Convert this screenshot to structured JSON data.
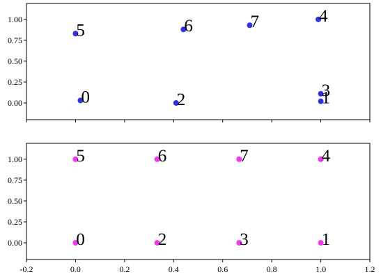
{
  "chart_data": [
    {
      "type": "scatter",
      "color": "#1a1af0",
      "x": [
        0.02,
        1.0,
        0.41,
        1.0,
        0.99,
        0.0,
        0.44,
        0.71
      ],
      "values": [
        0.03,
        0.02,
        0.0,
        0.11,
        1.0,
        0.83,
        0.88,
        0.93
      ],
      "point_labels": [
        "0",
        "1",
        "2",
        "3",
        "4",
        "5",
        "6",
        "7"
      ],
      "xlim": [
        -0.2,
        1.2
      ],
      "ylim": [
        -0.2,
        1.19
      ],
      "xticks": [
        -0.2,
        {
          "value": 0,
          "label": "0.0"
        },
        0.2,
        0.4,
        0.6,
        0.8,
        {
          "value": 1,
          "label": "1.0"
        },
        1.2
      ],
      "yticks": [
        {
          "value": 0,
          "label": "0.00"
        },
        {
          "value": 0.25,
          "label": "0.25"
        },
        {
          "value": 0.5,
          "label": "0.50"
        },
        {
          "value": 0.75,
          "label": "0.75"
        },
        {
          "value": 1,
          "label": "1.00"
        }
      ]
    },
    {
      "type": "scatter",
      "color": "#ff1aff",
      "x": [
        0.0,
        1.0,
        0.333,
        0.667,
        1.0,
        0.0,
        0.333,
        0.667
      ],
      "values": [
        0,
        0,
        0,
        0,
        1,
        1,
        1,
        1
      ],
      "point_labels": [
        "0",
        "1",
        "2",
        "3",
        "4",
        "5",
        "6",
        "7"
      ],
      "xlim": [
        -0.2,
        1.2
      ],
      "ylim": [
        -0.2,
        1.19
      ],
      "xticks": [
        -0.2,
        {
          "value": 0,
          "label": "0.0"
        },
        0.2,
        0.4,
        0.6,
        0.8,
        {
          "value": 1,
          "label": "1.0"
        },
        1.2
      ],
      "yticks": [
        {
          "value": 0,
          "label": "0.00"
        },
        {
          "value": 0.25,
          "label": "0.25"
        },
        {
          "value": 0.5,
          "label": "0.50"
        },
        {
          "value": 0.75,
          "label": "0.75"
        },
        {
          "value": 1,
          "label": "1.00"
        }
      ]
    }
  ]
}
